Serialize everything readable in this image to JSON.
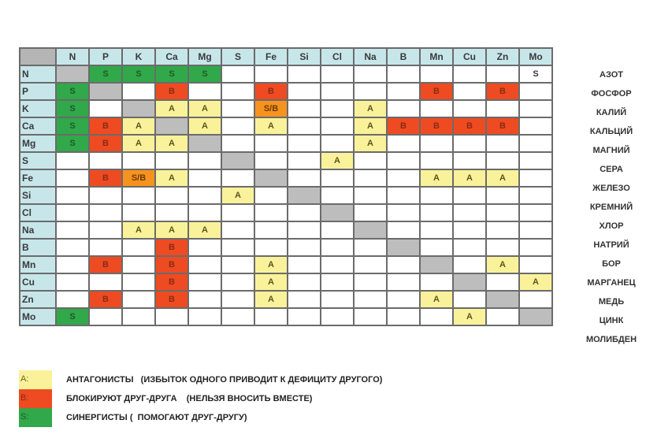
{
  "columns": [
    "N",
    "P",
    "K",
    "Ca",
    "Mg",
    "S",
    "Fe",
    "Si",
    "Cl",
    "Na",
    "B",
    "Mn",
    "Cu",
    "Zn",
    "Mo"
  ],
  "rows": [
    {
      "el": "N",
      "name": "АЗОТ",
      "cells": [
        "X",
        "S",
        "S",
        "S",
        "S",
        "",
        "",
        "",
        "",
        "",
        "",
        "",
        "",
        "",
        "S0"
      ]
    },
    {
      "el": "P",
      "name": "ФОСФОР",
      "cells": [
        "S",
        "X",
        "",
        "B",
        "",
        "",
        "B",
        "",
        "",
        "",
        "",
        "B",
        "",
        "B",
        ""
      ]
    },
    {
      "el": "K",
      "name": "КАЛИЙ",
      "cells": [
        "S",
        "",
        "X",
        "A",
        "A",
        "",
        "S/B",
        "",
        "",
        "A",
        "",
        "",
        "",
        "",
        ""
      ]
    },
    {
      "el": "Ca",
      "name": "КАЛЬЦИЙ",
      "cells": [
        "S",
        "B",
        "A",
        "X",
        "A",
        "",
        "A",
        "",
        "",
        "A",
        "B",
        "B",
        "B",
        "B",
        ""
      ]
    },
    {
      "el": "Mg",
      "name": "МАГНИЙ",
      "cells": [
        "S",
        "B",
        "A",
        "A",
        "X",
        "",
        "",
        "",
        "",
        "A",
        "",
        "",
        "",
        "",
        ""
      ]
    },
    {
      "el": "S",
      "name": "СЕРА",
      "cells": [
        "",
        "",
        "",
        "",
        "",
        "X",
        "",
        "",
        "A",
        "",
        "",
        "",
        "",
        "",
        ""
      ]
    },
    {
      "el": "Fe",
      "name": "ЖЕЛЕЗО",
      "cells": [
        "",
        "B",
        "S/B",
        "A",
        "",
        "",
        "X",
        "",
        "",
        "",
        "",
        "A",
        "A",
        "A",
        ""
      ]
    },
    {
      "el": "Si",
      "name": "КРЕМНИЙ",
      "cells": [
        "",
        "",
        "",
        "",
        "",
        "A",
        "",
        "X",
        "",
        "",
        "",
        "",
        "",
        "",
        ""
      ]
    },
    {
      "el": "Cl",
      "name": "ХЛОР",
      "cells": [
        "",
        "",
        "",
        "",
        "",
        "",
        "",
        "",
        "X",
        "",
        "",
        "",
        "",
        "",
        ""
      ]
    },
    {
      "el": "Na",
      "name": "НАТРИЙ",
      "cells": [
        "",
        "",
        "A",
        "A",
        "A",
        "",
        "",
        "",
        "",
        "X",
        "",
        "",
        "",
        "",
        ""
      ]
    },
    {
      "el": "B",
      "name": "БОР",
      "cells": [
        "",
        "",
        "",
        "B",
        "",
        "",
        "",
        "",
        "",
        "",
        "X",
        "",
        "",
        "",
        ""
      ]
    },
    {
      "el": "Mn",
      "name": "МАРГАНЕЦ",
      "cells": [
        "",
        "B",
        "",
        "B",
        "",
        "",
        "A",
        "",
        "",
        "",
        "",
        "X",
        "",
        "A",
        ""
      ]
    },
    {
      "el": "Cu",
      "name": "МЕДЬ",
      "cells": [
        "",
        "",
        "",
        "B",
        "",
        "",
        "A",
        "",
        "",
        "",
        "",
        "",
        "X",
        "",
        "A"
      ]
    },
    {
      "el": "Zn",
      "name": "ЦИНК",
      "cells": [
        "",
        "B",
        "",
        "B",
        "",
        "",
        "A",
        "",
        "",
        "",
        "",
        "A",
        "",
        "X",
        ""
      ]
    },
    {
      "el": "Mo",
      "name": "МОЛИБДЕН",
      "cells": [
        "S",
        "",
        "",
        "",
        "",
        "",
        "",
        "",
        "",
        "",
        "",
        "",
        "A",
        "",
        "X"
      ]
    }
  ],
  "legend": [
    {
      "key": "A:",
      "text": "АНТАГОНИСТЫ   (ИЗБЫТОК ОДНОГО ПРИВОДИТ К ДЕФИЦИТУ ДРУГОГО)",
      "color": "#faf29a"
    },
    {
      "key": "B:",
      "text": "БЛОКИРУЮТ ДРУГ-ДРУГА    (НЕЛЬЗЯ ВНОСИТЬ ВМЕСТЕ)",
      "color": "#ee4b22"
    },
    {
      "key": "S:",
      "text": "СИНЕРГИСТЫ (  ПОМОГАЮТ ДРУГ-ДРУГУ)",
      "color": "#31a84a"
    }
  ]
}
